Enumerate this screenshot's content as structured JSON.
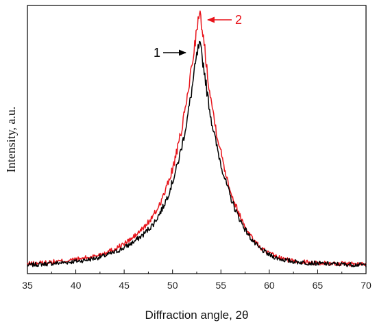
{
  "chart_data": {
    "type": "line",
    "title": "",
    "xlabel": "Diffraction angle, 2θ",
    "ylabel": "Intensity, a.u.",
    "xlim": [
      35,
      70
    ],
    "ylim": [
      0,
      100
    ],
    "x_ticks": [
      "35",
      "40",
      "45",
      "50",
      "55",
      "60",
      "65",
      "70"
    ],
    "y_ticks_shown": false,
    "grid": false,
    "series": [
      {
        "name": "1",
        "color": "#000000",
        "x": [
          35,
          36,
          37,
          38,
          39,
          40,
          41,
          42,
          43,
          44,
          45,
          46,
          47,
          48,
          48.5,
          49,
          49.5,
          50,
          50.5,
          51,
          51.5,
          52,
          52.3,
          52.6,
          52.8,
          53,
          53.3,
          53.6,
          54,
          54.5,
          55,
          55.5,
          56,
          56.5,
          57,
          57.5,
          58,
          58.5,
          59,
          60,
          61,
          62,
          63,
          64,
          65,
          66,
          67,
          68,
          69,
          70
        ],
        "y": [
          2.5,
          2.8,
          3.0,
          3.3,
          3.6,
          4.0,
          4.5,
          5.2,
          6.2,
          7.5,
          9.3,
          11.6,
          14.5,
          18.5,
          21.5,
          25.0,
          29.5,
          35.0,
          41.5,
          49.5,
          59.0,
          71.0,
          79.0,
          86.0,
          88.0,
          85.0,
          78.0,
          69.0,
          59.5,
          50.0,
          42.0,
          35.0,
          29.0,
          24.0,
          20.0,
          16.5,
          13.5,
          11.0,
          9.0,
          6.5,
          5.0,
          4.2,
          3.7,
          3.4,
          3.2,
          3.0,
          2.9,
          2.8,
          2.7,
          2.6
        ]
      },
      {
        "name": "2",
        "color": "#e8141b",
        "x": [
          35,
          36,
          37,
          38,
          39,
          40,
          41,
          42,
          43,
          44,
          45,
          46,
          47,
          48,
          48.5,
          49,
          49.5,
          50,
          50.5,
          51,
          51.5,
          52,
          52.3,
          52.6,
          52.8,
          53,
          53.3,
          53.6,
          54,
          54.5,
          55,
          55.5,
          56,
          56.5,
          57,
          57.5,
          58,
          58.5,
          59,
          60,
          61,
          62,
          63,
          64,
          65,
          66,
          67,
          68,
          69,
          70
        ],
        "y": [
          3.0,
          3.3,
          3.6,
          3.9,
          4.2,
          4.7,
          5.3,
          6.1,
          7.3,
          8.8,
          10.8,
          13.5,
          17.0,
          21.5,
          25.0,
          29.0,
          34.0,
          40.0,
          47.5,
          56.5,
          67.5,
          80.5,
          89.0,
          96.5,
          100.0,
          96.5,
          88.0,
          77.5,
          66.5,
          55.5,
          46.5,
          38.5,
          31.5,
          26.0,
          21.5,
          17.5,
          14.5,
          11.8,
          9.6,
          7.0,
          5.4,
          4.5,
          4.0,
          3.6,
          3.4,
          3.2,
          3.1,
          3.0,
          2.9,
          2.8
        ]
      }
    ],
    "annotations": [
      {
        "text": "1",
        "color": "#000000",
        "series": "1"
      },
      {
        "text": "2",
        "color": "#e8141b",
        "series": "2"
      }
    ]
  }
}
